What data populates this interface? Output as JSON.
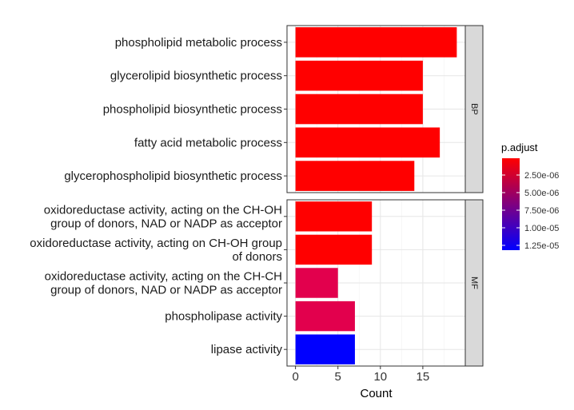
{
  "chart_data": {
    "type": "bar",
    "orientation": "horizontal",
    "xlabel": "Count",
    "xlim": [
      -1,
      20
    ],
    "x_ticks": [
      0,
      5,
      10,
      15
    ],
    "x_tick_labels": [
      "0",
      "5",
      "10",
      "15"
    ],
    "grid": true,
    "facets": [
      {
        "strip_label": "BP",
        "bars": [
          {
            "lines": [
              "phospholipid metabolic process"
            ],
            "value": 19,
            "color": "#FF0000"
          },
          {
            "lines": [
              "glycerolipid biosynthetic process"
            ],
            "value": 15,
            "color": "#FF0000"
          },
          {
            "lines": [
              "phospholipid biosynthetic process"
            ],
            "value": 15,
            "color": "#FF0000"
          },
          {
            "lines": [
              "fatty acid metabolic process"
            ],
            "value": 17,
            "color": "#FF0000"
          },
          {
            "lines": [
              "glycerophospholipid biosynthetic process"
            ],
            "value": 14,
            "color": "#FF0000"
          }
        ]
      },
      {
        "strip_label": "MF",
        "bars": [
          {
            "lines": [
              "oxidoreductase activity, acting on the CH-OH",
              "group of donors, NAD or NADP as acceptor"
            ],
            "value": 9,
            "color": "#FF0000"
          },
          {
            "lines": [
              "oxidoreductase activity, acting on CH-OH group",
              "of donors"
            ],
            "value": 9,
            "color": "#FF0000"
          },
          {
            "lines": [
              "oxidoreductase activity, acting on the CH-CH",
              "group of donors, NAD or NADP as acceptor"
            ],
            "value": 5,
            "color": "#E2004D"
          },
          {
            "lines": [
              "phospholipase activity"
            ],
            "value": 7,
            "color": "#E2004D"
          },
          {
            "lines": [
              "lipase activity"
            ],
            "value": 7,
            "color": "#0000FF"
          }
        ]
      }
    ],
    "legend": {
      "title": "p.adjust",
      "position": "right",
      "gradient_colors": [
        "#FF0000",
        "#0000FF"
      ],
      "labels": [
        "2.50e-06",
        "5.00e-06",
        "7.50e-06",
        "1.00e-05",
        "1.25e-05"
      ]
    }
  }
}
